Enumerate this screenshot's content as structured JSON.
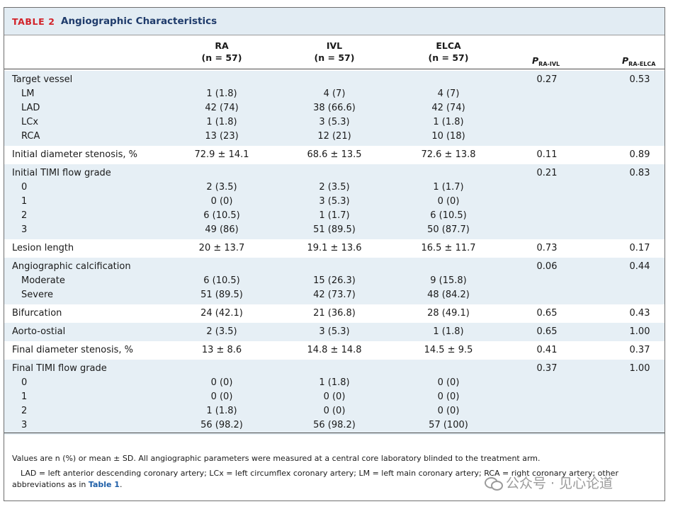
{
  "table": {
    "tag": "TABLE 2",
    "title": "Angiographic Characteristics",
    "columns": [
      {
        "name": "RA",
        "n": "(n = 57)"
      },
      {
        "name": "IVL",
        "n": "(n = 57)"
      },
      {
        "name": "ELCA",
        "n": "(n = 57)"
      }
    ],
    "p_columns": [
      {
        "p": "P",
        "sub": "RA-IVL"
      },
      {
        "p": "P",
        "sub": "RA-ELCA"
      }
    ],
    "groups": [
      {
        "label": "Target vessel",
        "p1": "0.27",
        "p2": "0.53",
        "values": [
          "",
          "",
          ""
        ],
        "subrows": [
          {
            "label": "LM",
            "values": [
              "1 (1.8)",
              "4 (7)",
              "4 (7)"
            ]
          },
          {
            "label": "LAD",
            "values": [
              "42 (74)",
              "38 (66.6)",
              "42 (74)"
            ]
          },
          {
            "label": "LCx",
            "values": [
              "1 (1.8)",
              "3 (5.3)",
              "1 (1.8)"
            ]
          },
          {
            "label": "RCA",
            "values": [
              "13 (23)",
              "12 (21)",
              "10 (18)"
            ]
          }
        ]
      },
      {
        "label": "Initial diameter stenosis, %",
        "p1": "0.11",
        "p2": "0.89",
        "values": [
          "72.9 ± 14.1",
          "68.6 ± 13.5",
          "72.6 ± 13.8"
        ],
        "subrows": []
      },
      {
        "label": "Initial TIMI flow grade",
        "p1": "0.21",
        "p2": "0.83",
        "values": [
          "",
          "",
          ""
        ],
        "subrows": [
          {
            "label": "0",
            "values": [
              "2 (3.5)",
              "2 (3.5)",
              "1 (1.7)"
            ]
          },
          {
            "label": "1",
            "values": [
              "0 (0)",
              "3 (5.3)",
              "0 (0)"
            ]
          },
          {
            "label": "2",
            "values": [
              "6 (10.5)",
              "1 (1.7)",
              "6 (10.5)"
            ]
          },
          {
            "label": "3",
            "values": [
              "49 (86)",
              "51 (89.5)",
              "50 (87.7)"
            ]
          }
        ]
      },
      {
        "label": "Lesion length",
        "p1": "0.73",
        "p2": "0.17",
        "values": [
          "20 ± 13.7",
          "19.1 ± 13.6",
          "16.5 ± 11.7"
        ],
        "subrows": []
      },
      {
        "label": "Angiographic calcification",
        "p1": "0.06",
        "p2": "0.44",
        "values": [
          "",
          "",
          ""
        ],
        "subrows": [
          {
            "label": "Moderate",
            "values": [
              "6 (10.5)",
              "15 (26.3)",
              "9 (15.8)"
            ]
          },
          {
            "label": "Severe",
            "values": [
              "51 (89.5)",
              "42 (73.7)",
              "48 (84.2)"
            ]
          }
        ]
      },
      {
        "label": "Bifurcation",
        "p1": "0.65",
        "p2": "0.43",
        "values": [
          "24 (42.1)",
          "21 (36.8)",
          "28 (49.1)"
        ],
        "subrows": []
      },
      {
        "label": "Aorto-ostial",
        "p1": "0.65",
        "p2": "1.00",
        "values": [
          "2 (3.5)",
          "3 (5.3)",
          "1 (1.8)"
        ],
        "subrows": []
      },
      {
        "label": "Final diameter stenosis, %",
        "p1": "0.41",
        "p2": "0.37",
        "values": [
          "13 ± 8.6",
          "14.8 ± 14.8",
          "14.5 ± 9.5"
        ],
        "subrows": []
      },
      {
        "label": "Final TIMI flow grade",
        "p1": "0.37",
        "p2": "1.00",
        "values": [
          "",
          "",
          ""
        ],
        "subrows": [
          {
            "label": "0",
            "values": [
              "0 (0)",
              "1 (1.8)",
              "0 (0)"
            ]
          },
          {
            "label": "1",
            "values": [
              "0 (0)",
              "0 (0)",
              "0 (0)"
            ]
          },
          {
            "label": "2",
            "values": [
              "1 (1.8)",
              "0 (0)",
              "0 (0)"
            ]
          },
          {
            "label": "3",
            "values": [
              "56 (98.2)",
              "56 (98.2)",
              "57 (100)"
            ]
          }
        ]
      }
    ]
  },
  "footnotes": {
    "line1": "Values are n (%) or mean ± SD. All angiographic parameters were measured at a central core laboratory blinded to the treatment arm.",
    "line2_text": "LAD = left anterior descending coronary artery; LCx = left circumflex coronary artery; LM = left main coronary artery; RCA = right coronary artery; other abbreviations as in ",
    "line2_link": "Table 1",
    "line2_end": "."
  },
  "watermark": {
    "icon": "wechat-icon",
    "text": "公众号 · 见心论道"
  }
}
